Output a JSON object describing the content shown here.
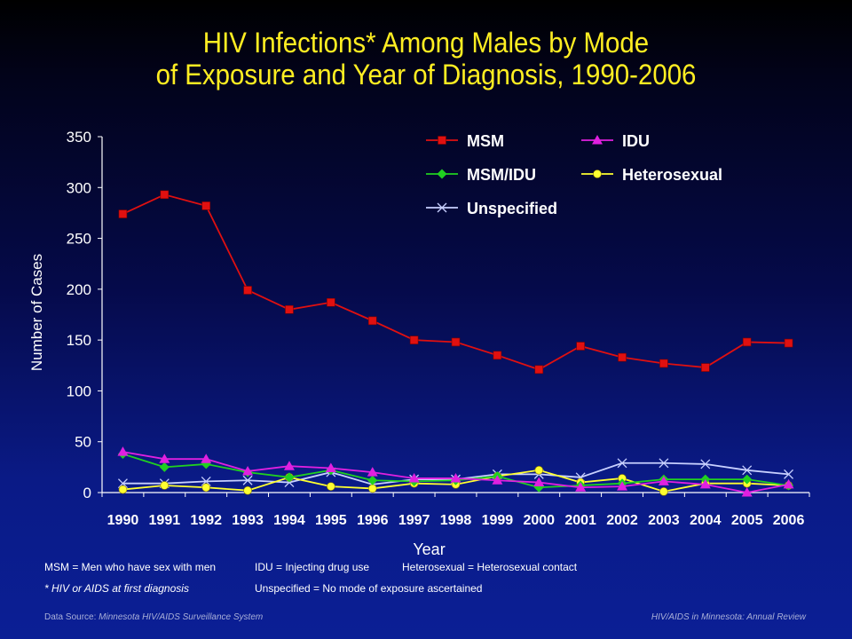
{
  "chart_data": {
    "type": "line",
    "title_line1": "HIV Infections* Among Males by Mode",
    "title_line2": "of Exposure and Year of Diagnosis, 1990-2006",
    "xlabel": "Year",
    "ylabel": "Number of Cases",
    "x": [
      "1990",
      "1991",
      "1992",
      "1993",
      "1994",
      "1995",
      "1996",
      "1997",
      "1998",
      "1999",
      "2000",
      "2001",
      "2002",
      "2003",
      "2004",
      "2005",
      "2006"
    ],
    "ylim": [
      0,
      350
    ],
    "yticks": [
      0,
      50,
      100,
      150,
      200,
      250,
      300,
      350
    ],
    "legend_position": "top-right",
    "series": [
      {
        "name": "MSM",
        "color": "#e01010",
        "marker": "square",
        "values": [
          274,
          293,
          282,
          199,
          180,
          187,
          169,
          150,
          148,
          135,
          121,
          144,
          133,
          127,
          123,
          148,
          147
        ]
      },
      {
        "name": "IDU",
        "color": "#e020e0",
        "marker": "triangle",
        "values": [
          40,
          33,
          33,
          21,
          26,
          24,
          20,
          14,
          14,
          12,
          10,
          5,
          6,
          11,
          8,
          0,
          8
        ]
      },
      {
        "name": "MSM/IDU",
        "color": "#20d020",
        "marker": "diamond",
        "values": [
          38,
          25,
          28,
          20,
          15,
          22,
          12,
          11,
          12,
          16,
          5,
          7,
          9,
          13,
          13,
          13,
          7
        ]
      },
      {
        "name": "Heterosexual",
        "color": "#ffff30",
        "marker": "circle",
        "values": [
          3,
          7,
          5,
          2,
          15,
          6,
          4,
          9,
          8,
          16,
          22,
          10,
          14,
          1,
          9,
          9,
          7
        ]
      },
      {
        "name": "Unspecified",
        "color": "#c8d0ff",
        "marker": "x",
        "values": [
          9,
          9,
          11,
          12,
          10,
          20,
          8,
          13,
          13,
          18,
          18,
          15,
          29,
          29,
          28,
          22,
          18
        ]
      }
    ]
  },
  "footnotes": {
    "msm_def": "MSM = Men who have sex with men",
    "idu_def": "IDU = Injecting drug use",
    "hetero_def": "Heterosexual = Heterosexual contact",
    "asterisk": "* HIV or AIDS at first diagnosis",
    "unspec_def": "Unspecified = No mode of exposure ascertained"
  },
  "source": {
    "label": "Data Source:",
    "text": "Minnesota HIV/AIDS Surveillance System",
    "right": "HIV/AIDS in Minnesota: Annual Review"
  }
}
